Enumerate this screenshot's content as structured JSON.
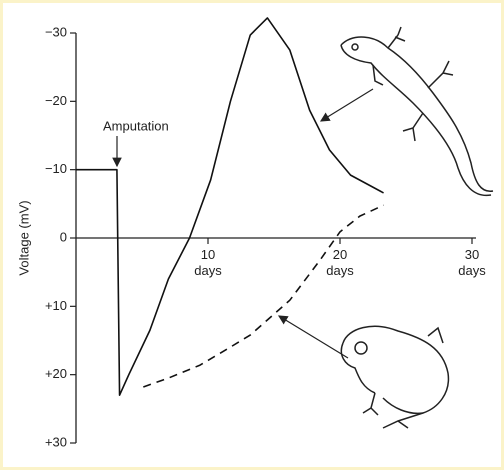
{
  "chart_data": {
    "type": "line",
    "y_label": "Voltage (mV)",
    "annotation": "Amputation",
    "xlim": [
      0,
      30
    ],
    "ylim": [
      30,
      -30
    ],
    "xticks": [
      {
        "value": 10,
        "label": "10 days"
      },
      {
        "value": 20,
        "label": "20 days"
      },
      {
        "value": 30,
        "label": "30 days"
      }
    ],
    "yticks": [
      {
        "value": -30,
        "label": "−30"
      },
      {
        "value": -20,
        "label": "−20"
      },
      {
        "value": -10,
        "label": "−10"
      },
      0,
      {
        "value": 10,
        "label": "+10"
      },
      {
        "value": 20,
        "label": "+20"
      },
      {
        "value": 30,
        "label": "+30"
      }
    ],
    "series": [
      {
        "color": "#111111",
        "style": "solid",
        "x": [
          0,
          3.1,
          3.3,
          4,
          5.6,
          7,
          8.6,
          10.2,
          11.7,
          13.2,
          14.5,
          16.2,
          17.7,
          19.2,
          20.8,
          23.3
        ],
        "values": [
          -10,
          -10,
          23,
          20,
          13.5,
          6,
          0,
          -8.5,
          -20,
          -29.7,
          -32.2,
          -27.5,
          -18.7,
          -12.9,
          -9.2,
          -6.6
        ]
      },
      {
        "color": "#111111",
        "style": "dashed",
        "x": [
          5.1,
          7,
          9.4,
          11.5,
          13.2,
          16.2,
          18.5,
          20,
          21.5,
          23.3
        ],
        "values": [
          21.8,
          20.5,
          18.6,
          16.2,
          14.2,
          9.1,
          3.2,
          -0.9,
          -3.2,
          -4.8
        ]
      }
    ]
  }
}
